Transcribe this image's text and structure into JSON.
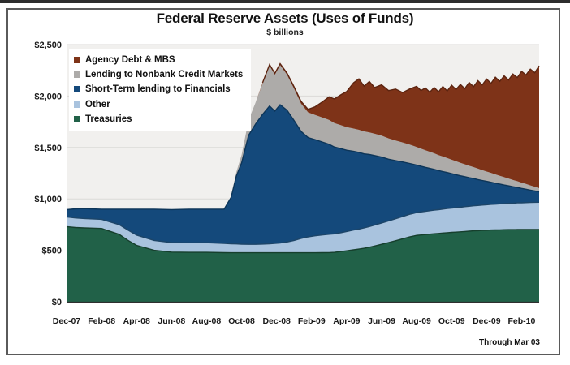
{
  "header": {
    "title": "Federal Reserve Assets (Uses of Funds)",
    "subtitle": "$ billions"
  },
  "footnote": "Through Mar 03",
  "legend": {
    "items": [
      {
        "label": "Agency Debt & MBS",
        "color": "#7E3318"
      },
      {
        "label": "Lending to Nonbank Credit Markets",
        "color": "#ADABA9"
      },
      {
        "label": "Short-Term lending to Financials",
        "color": "#14497B"
      },
      {
        "label": "Other",
        "color": "#A9C3DE"
      },
      {
        "label": "Treasuries",
        "color": "#216148"
      }
    ]
  },
  "chart_data": {
    "type": "area",
    "stacked": true,
    "title": "Federal Reserve Assets (Uses of Funds)",
    "units": "$ billions",
    "grid": true,
    "legend_position": "top-left",
    "x_unit": "months since Dec-2007 (27 = Mar 03, 2010)",
    "ylim": [
      0,
      2500
    ],
    "x": [
      0,
      0.5,
      1,
      2,
      3,
      3.5,
      4,
      5,
      6,
      7,
      8,
      9,
      9.4,
      9.7,
      10,
      10.4,
      10.8,
      11.2,
      11.6,
      11.9,
      12.2,
      12.6,
      13,
      13.4,
      13.8,
      14.2,
      14.6,
      15,
      15.3,
      15.7,
      16,
      16.4,
      16.7,
      17,
      17.3,
      17.6,
      18,
      18.4,
      18.8,
      19.2,
      19.6,
      20,
      20.25,
      20.5,
      20.75,
      21,
      21.25,
      21.5,
      21.75,
      22,
      22.25,
      22.5,
      22.75,
      23,
      23.25,
      23.5,
      23.75,
      24,
      24.25,
      24.5,
      24.75,
      25,
      25.25,
      25.5,
      25.75,
      26,
      26.25,
      26.5,
      26.75,
      27
    ],
    "series": [
      {
        "name": "Treasuries",
        "color": "#216148",
        "edge": "#163F2D",
        "values": [
          730,
          722,
          718,
          712,
          655,
          598,
          548,
          500,
          483,
          480,
          480,
          477,
          476,
          476,
          476,
          476,
          476,
          476,
          476,
          476,
          476,
          476,
          476,
          476,
          476,
          476,
          477,
          478,
          480,
          488,
          495,
          505,
          512,
          520,
          530,
          542,
          558,
          575,
          593,
          612,
          630,
          645,
          649,
          653,
          657,
          661,
          664,
          668,
          671,
          674,
          677,
          680,
          683,
          686,
          689,
          691,
          693,
          695,
          697,
          698,
          699,
          700,
          701,
          701,
          702,
          702,
          702,
          702,
          702,
          702
        ]
      },
      {
        "name": "Other",
        "color": "#A9C3DE",
        "edge": "#1D4568",
        "values": [
          95,
          93,
          91,
          89,
          95,
          100,
          100,
          96,
          93,
          93,
          94,
          91,
          88,
          86,
          84,
          82,
          82,
          85,
          88,
          92,
          95,
          105,
          120,
          140,
          155,
          165,
          172,
          178,
          180,
          184,
          188,
          192,
          195,
          198,
          201,
          204,
          208,
          211,
          214,
          217,
          220,
          222,
          224,
          226,
          228,
          230,
          231,
          233,
          235,
          236,
          238,
          239,
          241,
          242,
          244,
          245,
          247,
          248,
          250,
          251,
          253,
          254,
          256,
          257,
          259,
          260,
          262,
          263,
          265,
          266
        ]
      },
      {
        "name": "Short-Term lending to Financials",
        "color": "#14497B",
        "edge": "#0D3558",
        "values": [
          70,
          88,
          96,
          99,
          150,
          202,
          252,
          304,
          320,
          327,
          326,
          332,
          450,
          660,
          790,
          1060,
          1170,
          1260,
          1340,
          1285,
          1345,
          1280,
          1165,
          1040,
          965,
          935,
          905,
          875,
          845,
          815,
          790,
          765,
          745,
          720,
          700,
          675,
          640,
          600,
          565,
          530,
          495,
          462,
          445,
          428,
          412,
          396,
          380,
          365,
          350,
          335,
          320,
          306,
          292,
          278,
          265,
          252,
          239,
          227,
          215,
          203,
          192,
          181,
          170,
          160,
          150,
          140,
          130,
          120,
          110,
          100
        ]
      },
      {
        "name": "Lending to Nonbank Credit Markets",
        "color": "#ADABA9",
        "edge": null,
        "values": [
          0,
          0,
          0,
          0,
          0,
          0,
          0,
          0,
          0,
          0,
          0,
          0,
          10,
          40,
          80,
          150,
          210,
          300,
          390,
          355,
          385,
          345,
          310,
          270,
          245,
          240,
          238,
          236,
          232,
          228,
          225,
          222,
          220,
          218,
          215,
          212,
          208,
          202,
          196,
          190,
          183,
          176,
          171,
          166,
          161,
          156,
          151,
          146,
          141,
          136,
          131,
          126,
          121,
          116,
          111,
          106,
          101,
          96,
          91,
          86,
          81,
          76,
          71,
          66,
          61,
          56,
          51,
          46,
          41,
          36
        ]
      },
      {
        "name": "Agency Debt & MBS",
        "color": "#7E3318",
        "edge": "#5C2410",
        "values": [
          0,
          0,
          0,
          0,
          0,
          0,
          0,
          0,
          0,
          0,
          0,
          0,
          0,
          0,
          0,
          0,
          0,
          8,
          12,
          12,
          14,
          16,
          18,
          22,
          30,
          80,
          150,
          225,
          235,
          300,
          345,
          445,
          495,
          440,
          495,
          450,
          495,
          465,
          500,
          485,
          540,
          590,
          565,
          605,
          580,
          640,
          615,
          680,
          652,
          725,
          698,
          762,
          735,
          810,
          782,
          855,
          828,
          900,
          870,
          945,
          918,
          985,
          958,
          1030,
          1008,
          1082,
          1060,
          1130,
          1108,
          1190
        ]
      }
    ],
    "x_ticks": [
      {
        "m": 0,
        "label": "Dec-07"
      },
      {
        "m": 2,
        "label": "Feb-08"
      },
      {
        "m": 4,
        "label": "Apr-08"
      },
      {
        "m": 6,
        "label": "Jun-08"
      },
      {
        "m": 8,
        "label": "Aug-08"
      },
      {
        "m": 10,
        "label": "Oct-08"
      },
      {
        "m": 12,
        "label": "Dec-08"
      },
      {
        "m": 14,
        "label": "Feb-09"
      },
      {
        "m": 16,
        "label": "Apr-09"
      },
      {
        "m": 18,
        "label": "Jun-09"
      },
      {
        "m": 20,
        "label": "Aug-09"
      },
      {
        "m": 22,
        "label": "Oct-09"
      },
      {
        "m": 24,
        "label": "Dec-09"
      },
      {
        "m": 26,
        "label": "Feb-10"
      }
    ],
    "y_ticks": [
      {
        "v": 0,
        "label": "$0"
      },
      {
        "v": 500,
        "label": "$500"
      },
      {
        "v": 1000,
        "label": "$1,000"
      },
      {
        "v": 1500,
        "label": "$1,500"
      },
      {
        "v": 2000,
        "label": "$2,000"
      },
      {
        "v": 2500,
        "label": "$2,500"
      }
    ],
    "colors": {
      "plot_background": "#F1F0EE",
      "gridline": "#DBDAD7",
      "axis_line": "#2F2F2F"
    }
  }
}
